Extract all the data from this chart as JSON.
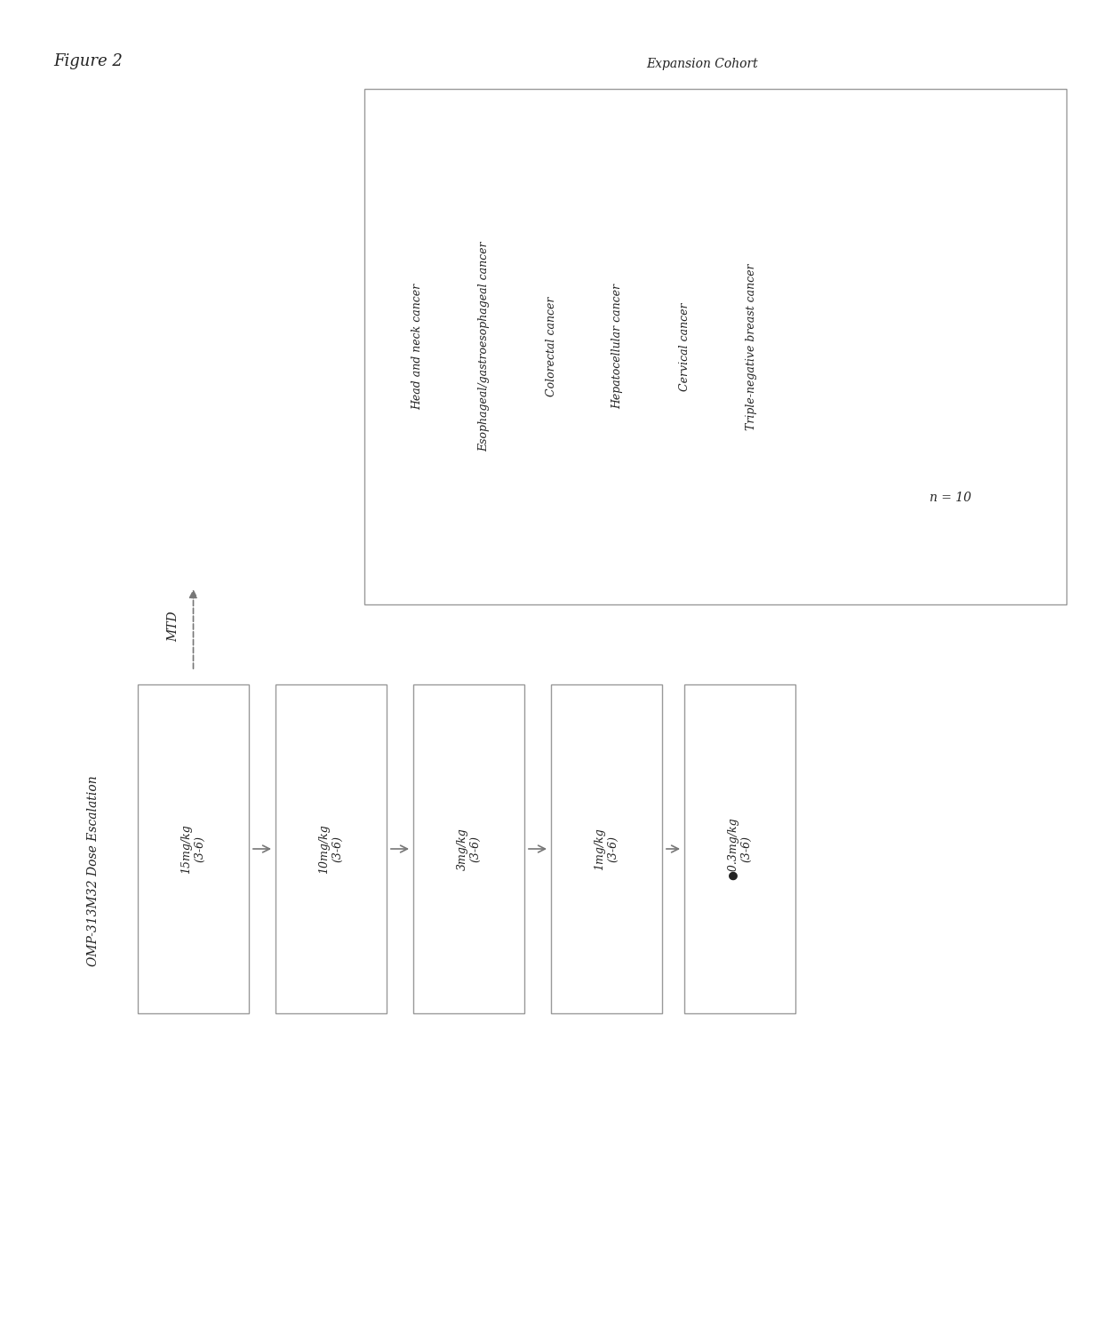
{
  "figure_title": "Figure 2",
  "left_section_label": "OMP-313M32 Dose Escalation",
  "right_section_label": "Expansion Cohort",
  "mtd_label": "MTD",
  "dose_labels": [
    "15mg/kg\n(3-6)",
    "10mg/kg\n(3-6)",
    "3mg/kg\n(3-6)",
    "1mg/kg\n(3-6)",
    "●0.3mg/kg\n(3-6)"
  ],
  "expansion_lines": [
    "Head and neck cancer",
    "Esophageal/gastroesophageal cancer",
    "Colorectal cancer",
    "Hepatocellular cancer",
    "Cervical cancer",
    "Triple-negative breast cancer"
  ],
  "n_label": "n = 10",
  "bg_color": "#ffffff",
  "box_edge_color": "#999999",
  "text_color": "#222222",
  "arrow_color": "#777777",
  "font_size_title": 13,
  "font_size_section": 10,
  "font_size_box": 9,
  "font_size_expansion": 9,
  "font_size_n": 10
}
